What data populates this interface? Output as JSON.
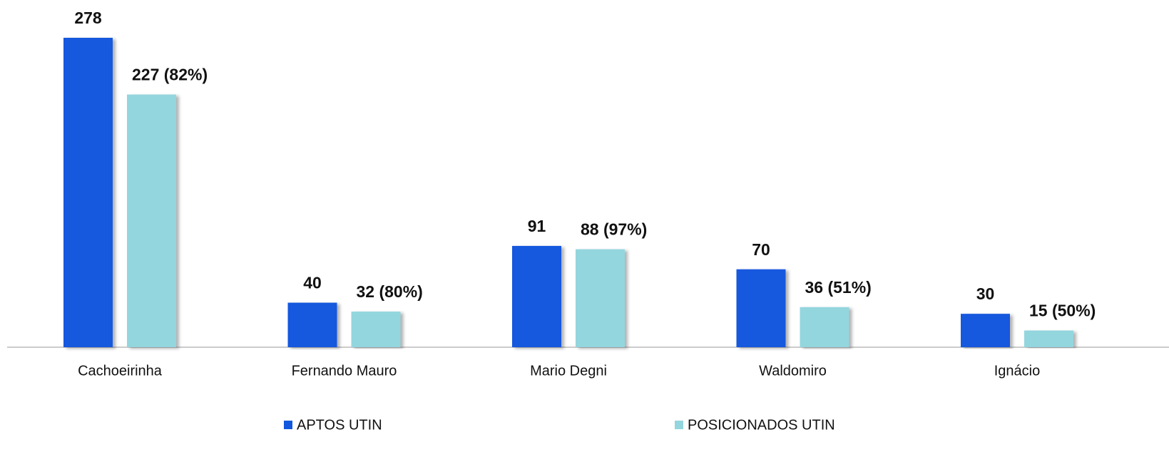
{
  "chart_data": {
    "type": "bar",
    "categories": [
      "Cachoeirinha",
      "Fernando Mauro",
      "Mario Degni",
      "Waldomiro",
      "Ignácio"
    ],
    "series": [
      {
        "name": "APTOS UTIN",
        "color": "#1258de",
        "values": [
          278,
          40,
          91,
          70,
          30
        ]
      },
      {
        "name": "POSICIONADOS UTIN",
        "color": "#93d6de",
        "values": [
          227,
          32,
          88,
          36,
          15
        ],
        "value_labels": [
          "227 (82%)",
          "32 (80%)",
          "88 (97%)",
          "36 (51%)",
          "15 (50%)"
        ]
      }
    ],
    "legend": "bottom"
  }
}
